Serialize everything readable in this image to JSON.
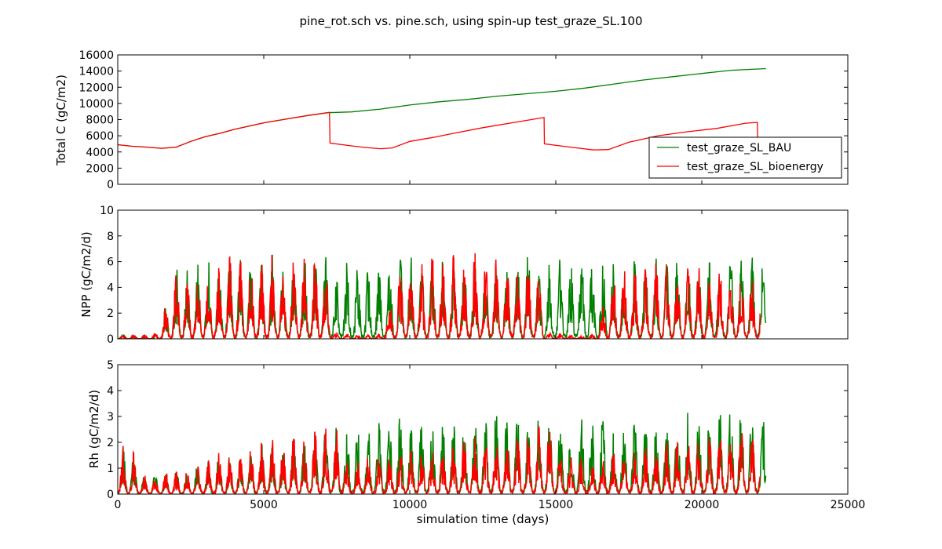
{
  "figure": {
    "title": "pine_rot.sch vs. pine.sch, using spin-up test_graze_SL.100",
    "xlabel": "simulation time (days)"
  },
  "colors": {
    "bau": "#008000",
    "bioenergy": "#ff0000",
    "axis": "#000000"
  },
  "chart_data": [
    {
      "type": "line",
      "name": "total_c",
      "ylabel": "Total C (gC/m2)",
      "xlim": [
        0,
        25000
      ],
      "ylim": [
        0,
        16000
      ],
      "xticks": [
        0,
        5000,
        10000,
        15000,
        20000,
        25000
      ],
      "yticks": [
        0,
        2000,
        4000,
        6000,
        8000,
        10000,
        12000,
        14000,
        16000
      ],
      "ytick_labels": [
        "0",
        "2000",
        "4000",
        "6000",
        "8000",
        "10000",
        "12000",
        "14000",
        "16000"
      ],
      "grid": false,
      "legend": {
        "placement": "lower-right",
        "entries": [
          "test_graze_SL_BAU",
          "test_graze_SL_bioenergy"
        ]
      },
      "series": [
        {
          "name": "test_graze_SL_BAU",
          "color": "#008000",
          "points": [
            [
              0,
              4900
            ],
            [
              500,
              4700
            ],
            [
              1000,
              4600
            ],
            [
              1500,
              4450
            ],
            [
              2000,
              4600
            ],
            [
              2500,
              5300
            ],
            [
              3000,
              5900
            ],
            [
              3500,
              6300
            ],
            [
              4000,
              6800
            ],
            [
              4500,
              7200
            ],
            [
              5000,
              7600
            ],
            [
              5500,
              7900
            ],
            [
              6000,
              8200
            ],
            [
              6500,
              8500
            ],
            [
              7200,
              8850
            ],
            [
              8000,
              8950
            ],
            [
              9000,
              9300
            ],
            [
              10000,
              9800
            ],
            [
              11000,
              10200
            ],
            [
              12000,
              10500
            ],
            [
              13000,
              10900
            ],
            [
              14000,
              11200
            ],
            [
              15000,
              11500
            ],
            [
              16000,
              11900
            ],
            [
              17000,
              12400
            ],
            [
              18000,
              12900
            ],
            [
              19000,
              13300
            ],
            [
              20000,
              13700
            ],
            [
              21000,
              14100
            ],
            [
              22200,
              14300
            ]
          ]
        },
        {
          "name": "test_graze_SL_bioenergy",
          "color": "#ff0000",
          "points": [
            [
              0,
              4900
            ],
            [
              500,
              4700
            ],
            [
              1000,
              4600
            ],
            [
              1500,
              4450
            ],
            [
              2000,
              4600
            ],
            [
              2500,
              5300
            ],
            [
              3000,
              5900
            ],
            [
              3500,
              6300
            ],
            [
              4000,
              6800
            ],
            [
              4500,
              7200
            ],
            [
              5000,
              7600
            ],
            [
              5500,
              7900
            ],
            [
              6000,
              8200
            ],
            [
              6500,
              8500
            ],
            [
              7250,
              8900
            ],
            [
              7270,
              5100
            ],
            [
              8000,
              4750
            ],
            [
              8500,
              4550
            ],
            [
              9000,
              4400
            ],
            [
              9400,
              4500
            ],
            [
              10000,
              5300
            ],
            [
              10800,
              5800
            ],
            [
              11500,
              6300
            ],
            [
              12500,
              7000
            ],
            [
              13500,
              7600
            ],
            [
              14500,
              8200
            ],
            [
              14600,
              8250
            ],
            [
              14610,
              5000
            ],
            [
              15500,
              4600
            ],
            [
              16300,
              4250
            ],
            [
              16800,
              4300
            ],
            [
              17500,
              5200
            ],
            [
              18500,
              6000
            ],
            [
              19500,
              6500
            ],
            [
              20500,
              6900
            ],
            [
              21500,
              7550
            ],
            [
              21900,
              7650
            ],
            [
              21920,
              5200
            ],
            [
              22000,
              4900
            ]
          ]
        }
      ]
    },
    {
      "type": "line",
      "name": "npp",
      "ylabel": "NPP (gC/m2/d)",
      "xlim": [
        0,
        25000
      ],
      "ylim": [
        0,
        10
      ],
      "yticks": [
        0,
        2,
        4,
        6,
        8,
        10
      ],
      "ytick_labels": [
        "0",
        "2",
        "4",
        "6",
        "8",
        "10"
      ],
      "grid": false,
      "series": [
        {
          "name": "test_graze_SL_BAU",
          "color": "#008000",
          "x_range": [
            0,
            22200
          ],
          "year_length": 365,
          "peaks": [
            0.3,
            0.3,
            0.3,
            0.4,
            2.6,
            5.7,
            5.5,
            5.8,
            6.2,
            5.9,
            6.4,
            6.6,
            6.5,
            6.4,
            6.6,
            6.0,
            6.5,
            6.7,
            6.5,
            6.4,
            6.0,
            5.9,
            5.9,
            6.1,
            5.8,
            6.4,
            6.4,
            6.8,
            6.2,
            6.6,
            6.4,
            6.1,
            6.2,
            6.5,
            5.6,
            5.6,
            6.5,
            5.9,
            6.7,
            6.0,
            6.2,
            6.3,
            6.2,
            6.4,
            6.3,
            6.4,
            6.3,
            5.9,
            6.5,
            6.2,
            6.1,
            6.0,
            6.8,
            6.3,
            6.1,
            6.0,
            6.6,
            6.5,
            6.0,
            6.9,
            5.9
          ]
        },
        {
          "name": "test_graze_SL_bioenergy",
          "color": "#ff0000",
          "x_range": [
            0,
            22000
          ],
          "year_length": 365,
          "peaks": [
            0.3,
            0.3,
            0.3,
            0.4,
            2.6,
            5.7,
            5.5,
            5.8,
            6.2,
            5.9,
            6.4,
            6.6,
            6.5,
            6.4,
            6.6,
            6.0,
            6.5,
            6.7,
            6.5,
            6.4,
            0.5,
            0.4,
            0.3,
            0.3,
            0.4,
            3.0,
            5.9,
            6.1,
            5.8,
            6.4,
            6.4,
            6.8,
            6.2,
            6.6,
            6.4,
            6.1,
            6.2,
            6.5,
            5.6,
            5.6,
            0.5,
            0.4,
            0.3,
            0.3,
            0.4,
            2.8,
            5.5,
            6.0,
            5.8,
            6.1,
            6.0,
            5.9,
            5.7,
            5.8,
            5.5,
            5.4,
            5.9,
            5.6,
            5.5,
            5.0,
            4.9
          ]
        }
      ]
    },
    {
      "type": "line",
      "name": "rh",
      "ylabel": "Rh (gC/m2/d)",
      "xlim": [
        0,
        25000
      ],
      "ylim": [
        0,
        5
      ],
      "xticks": [
        0,
        5000,
        10000,
        15000,
        20000,
        25000
      ],
      "xtick_labels": [
        "0",
        "5000",
        "10000",
        "15000",
        "20000",
        "25000"
      ],
      "yticks": [
        0,
        1,
        2,
        3,
        4,
        5
      ],
      "ytick_labels": [
        "0",
        "1",
        "2",
        "3",
        "4",
        "5"
      ],
      "grid": false,
      "series": [
        {
          "name": "test_graze_SL_BAU",
          "color": "#008000",
          "x_range": [
            0,
            22200
          ],
          "year_length": 365,
          "peaks": [
            1.8,
            1.6,
            0.8,
            0.8,
            0.9,
            0.9,
            1.0,
            1.4,
            1.3,
            1.7,
            1.5,
            1.6,
            1.8,
            2.0,
            2.1,
            1.9,
            2.2,
            2.1,
            2.4,
            2.6,
            2.6,
            2.5,
            2.7,
            2.6,
            2.9,
            2.8,
            3.2,
            3.0,
            2.8,
            2.9,
            2.7,
            2.9,
            2.8,
            3.0,
            2.9,
            3.3,
            3.0,
            3.1,
            2.8,
            2.9,
            2.9,
            3.0,
            2.7,
            3.0,
            2.9,
            3.0,
            2.8,
            2.9,
            3.0,
            3.0,
            2.9,
            2.9,
            3.0,
            3.1,
            3.0,
            3.0,
            3.2,
            3.7,
            3.8,
            3.3,
            3.2
          ]
        },
        {
          "name": "test_graze_SL_bioenergy",
          "color": "#ff0000",
          "x_range": [
            0,
            22000
          ],
          "year_length": 365,
          "peaks": [
            1.8,
            1.6,
            0.8,
            0.8,
            0.9,
            0.9,
            1.0,
            1.4,
            1.3,
            1.7,
            1.5,
            1.6,
            1.8,
            2.0,
            2.1,
            1.9,
            2.2,
            2.1,
            2.4,
            2.6,
            2.6,
            1.4,
            1.4,
            1.5,
            1.5,
            1.6,
            1.6,
            1.8,
            1.8,
            1.9,
            1.9,
            2.0,
            2.1,
            2.2,
            2.2,
            2.3,
            2.4,
            2.5,
            2.5,
            2.6,
            2.6,
            1.5,
            1.5,
            1.5,
            1.6,
            1.6,
            1.7,
            1.8,
            1.8,
            1.9,
            1.9,
            2.0,
            2.0,
            2.1,
            2.1,
            2.2,
            2.3,
            2.4,
            2.5,
            2.6,
            2.6
          ]
        }
      ]
    }
  ]
}
